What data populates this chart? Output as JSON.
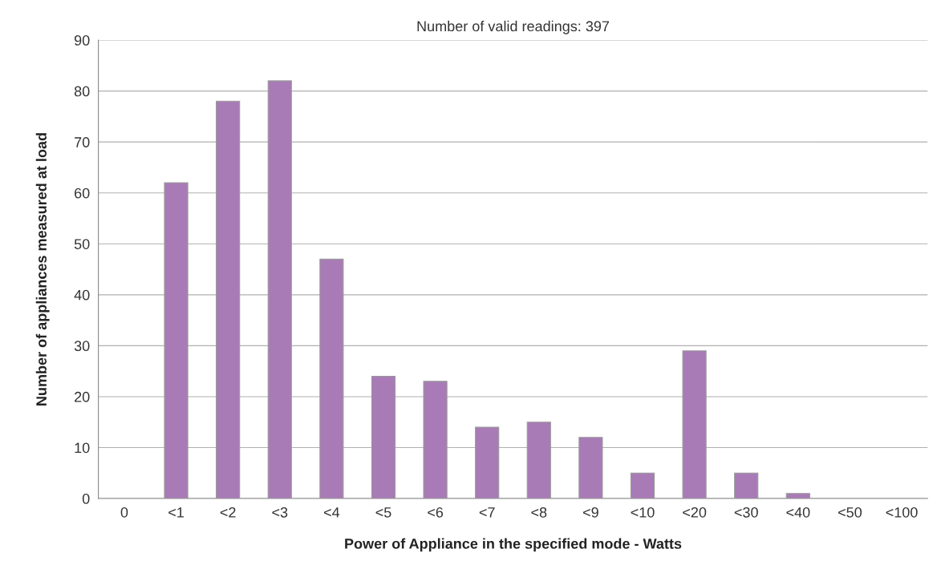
{
  "chart_data": {
    "type": "bar",
    "title": "Number of valid readings: 397",
    "xlabel": "Power of Appliance in the specified mode - Watts",
    "ylabel": "Number of appliances measured at load",
    "categories": [
      "0",
      "<1",
      "<2",
      "<3",
      "<4",
      "<5",
      "<6",
      "<7",
      "<8",
      "<9",
      "<10",
      "<20",
      "<30",
      "<40",
      "<50",
      "<100"
    ],
    "values": [
      0,
      62,
      78,
      82,
      47,
      24,
      23,
      14,
      15,
      12,
      5,
      29,
      5,
      1,
      0,
      0
    ],
    "color": "#a87bb6",
    "ylim": [
      0,
      90
    ],
    "yticks": [
      0,
      10,
      20,
      30,
      40,
      50,
      60,
      70,
      80,
      90
    ],
    "grid": "y"
  }
}
